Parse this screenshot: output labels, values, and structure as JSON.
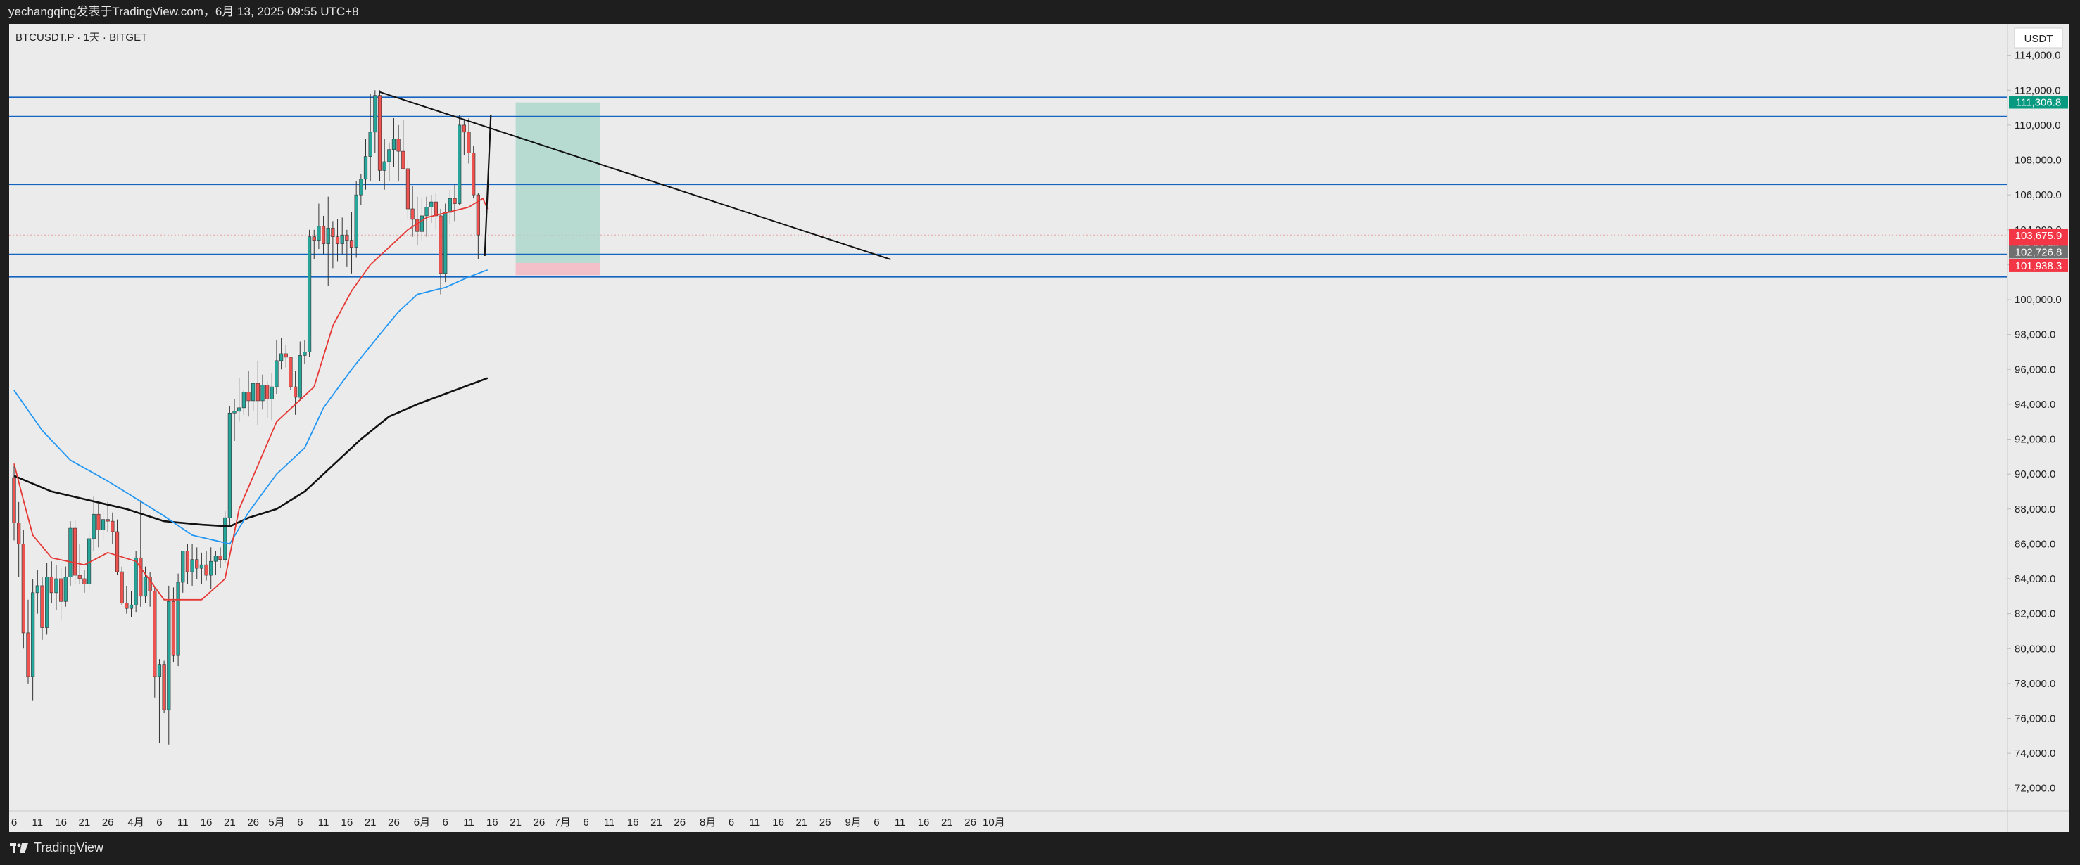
{
  "header": {
    "publisher": "yechangqing发表于TradingView.com，6月 13, 2025 09:55 UTC+8"
  },
  "footer": {
    "brand": "TradingView"
  },
  "colors": {
    "up": "#26a69a",
    "down": "#ef5350",
    "ema_red": "#e53935",
    "ema_blue": "#2196f3",
    "ema_black": "#111111",
    "hline": "#1565c0"
  },
  "chart_data": {
    "type": "candlestick",
    "symbol_label": "BTCUSDT.P · 1天 · BITGET",
    "currency": "USDT",
    "ylim": [
      70700,
      115800
    ],
    "y_ticks": [
      72000,
      74000,
      76000,
      78000,
      80000,
      82000,
      84000,
      86000,
      88000,
      90000,
      92000,
      94000,
      96000,
      98000,
      100000,
      102000,
      104000,
      106000,
      108000,
      110000,
      112000,
      114000
    ],
    "y_tick_labels": [
      "72,000.0",
      "74,000.0",
      "76,000.0",
      "78,000.0",
      "80,000.0",
      "82,000.0",
      "84,000.0",
      "86,000.0",
      "88,000.0",
      "90,000.0",
      "92,000.0",
      "94,000.0",
      "96,000.0",
      "98,000.0",
      "100,000.0",
      "102,000.0",
      "104,000.0",
      "106,000.0",
      "108,000.0",
      "110,000.0",
      "112,000.0",
      "114,000.0"
    ],
    "x_start_date": "2025-03-06",
    "x_ticks": [
      {
        "day": 0,
        "label": "6"
      },
      {
        "day": 5,
        "label": "11"
      },
      {
        "day": 10,
        "label": "16"
      },
      {
        "day": 15,
        "label": "21"
      },
      {
        "day": 20,
        "label": "26"
      },
      {
        "day": 26,
        "label": "4月"
      },
      {
        "day": 31,
        "label": "6"
      },
      {
        "day": 36,
        "label": "11"
      },
      {
        "day": 41,
        "label": "16"
      },
      {
        "day": 46,
        "label": "21"
      },
      {
        "day": 51,
        "label": "26"
      },
      {
        "day": 56,
        "label": "5月"
      },
      {
        "day": 61,
        "label": "6"
      },
      {
        "day": 66,
        "label": "11"
      },
      {
        "day": 71,
        "label": "16"
      },
      {
        "day": 76,
        "label": "21"
      },
      {
        "day": 81,
        "label": "26"
      },
      {
        "day": 87,
        "label": "6月"
      },
      {
        "day": 92,
        "label": "6"
      },
      {
        "day": 97,
        "label": "11"
      },
      {
        "day": 102,
        "label": "16"
      },
      {
        "day": 107,
        "label": "21"
      },
      {
        "day": 112,
        "label": "26"
      },
      {
        "day": 117,
        "label": "7月"
      },
      {
        "day": 122,
        "label": "6"
      },
      {
        "day": 127,
        "label": "11"
      },
      {
        "day": 132,
        "label": "16"
      },
      {
        "day": 137,
        "label": "21"
      },
      {
        "day": 142,
        "label": "26"
      },
      {
        "day": 148,
        "label": "8月"
      },
      {
        "day": 153,
        "label": "6"
      },
      {
        "day": 158,
        "label": "11"
      },
      {
        "day": 163,
        "label": "16"
      },
      {
        "day": 168,
        "label": "21"
      },
      {
        "day": 173,
        "label": "26"
      },
      {
        "day": 179,
        "label": "9月"
      },
      {
        "day": 184,
        "label": "6"
      },
      {
        "day": 189,
        "label": "11"
      },
      {
        "day": 194,
        "label": "16"
      },
      {
        "day": 199,
        "label": "21"
      },
      {
        "day": 204,
        "label": "26"
      },
      {
        "day": 209,
        "label": "10月"
      }
    ],
    "candles": [
      [
        89800,
        90500,
        86200,
        87200
      ],
      [
        87200,
        88400,
        84100,
        86000
      ],
      [
        86000,
        86800,
        80000,
        80900
      ],
      [
        80900,
        82800,
        78000,
        78400
      ],
      [
        78400,
        84000,
        77000,
        83200
      ],
      [
        83200,
        84500,
        82000,
        83600
      ],
      [
        83600,
        84100,
        80500,
        81200
      ],
      [
        81200,
        84900,
        80800,
        84100
      ],
      [
        84100,
        85000,
        82600,
        83200
      ],
      [
        83200,
        84800,
        82200,
        84000
      ],
      [
        84000,
        84600,
        81600,
        82700
      ],
      [
        82700,
        84700,
        82400,
        84100
      ],
      [
        84100,
        87300,
        83600,
        86900
      ],
      [
        86900,
        87400,
        83700,
        84200
      ],
      [
        84200,
        86000,
        83700,
        84000
      ],
      [
        84000,
        84500,
        83200,
        83700
      ],
      [
        83700,
        86700,
        83400,
        86300
      ],
      [
        86300,
        88700,
        85600,
        87700
      ],
      [
        87700,
        88300,
        85800,
        86800
      ],
      [
        86800,
        87900,
        86200,
        87400
      ],
      [
        87400,
        88400,
        86700,
        87300
      ],
      [
        87300,
        87800,
        86000,
        86700
      ],
      [
        86700,
        87400,
        84200,
        84400
      ],
      [
        84400,
        84700,
        82500,
        82600
      ],
      [
        82600,
        83600,
        82000,
        82300
      ],
      [
        82300,
        83300,
        81800,
        82500
      ],
      [
        82500,
        85600,
        82100,
        85200
      ],
      [
        85200,
        88500,
        82400,
        83000
      ],
      [
        83000,
        84700,
        82600,
        84100
      ],
      [
        84100,
        84400,
        82400,
        83300
      ],
      [
        83300,
        83500,
        77200,
        78400
      ],
      [
        78400,
        79400,
        74600,
        79100
      ],
      [
        79100,
        79300,
        76300,
        76500
      ],
      [
        76500,
        83600,
        74500,
        82700
      ],
      [
        82700,
        83500,
        79200,
        79600
      ],
      [
        79600,
        84300,
        79000,
        83800
      ],
      [
        83800,
        85600,
        83200,
        85600
      ],
      [
        85600,
        86000,
        83700,
        84400
      ],
      [
        84400,
        86000,
        83600,
        85100
      ],
      [
        85100,
        85800,
        84000,
        84600
      ],
      [
        84600,
        85500,
        83700,
        84800
      ],
      [
        84800,
        85600,
        83900,
        84200
      ],
      [
        84200,
        85800,
        83400,
        85000
      ],
      [
        85000,
        85600,
        84200,
        85300
      ],
      [
        85300,
        85800,
        84600,
        85100
      ],
      [
        85100,
        87900,
        84900,
        87500
      ],
      [
        87500,
        93900,
        87100,
        93500
      ],
      [
        93500,
        94300,
        91900,
        93600
      ],
      [
        93600,
        95500,
        93000,
        93800
      ],
      [
        93800,
        94800,
        93400,
        94700
      ],
      [
        94700,
        95900,
        93300,
        94200
      ],
      [
        94200,
        95000,
        93600,
        95200
      ],
      [
        95200,
        96500,
        92800,
        94200
      ],
      [
        94200,
        95700,
        93700,
        95100
      ],
      [
        95100,
        95300,
        93200,
        94300
      ],
      [
        94300,
        95800,
        93100,
        95000
      ],
      [
        95000,
        97700,
        94600,
        96500
      ],
      [
        96500,
        97800,
        96000,
        96900
      ],
      [
        96900,
        97400,
        96100,
        96700
      ],
      [
        96700,
        96700,
        94800,
        95000
      ],
      [
        95000,
        95900,
        93400,
        94400
      ],
      [
        94400,
        97600,
        94200,
        96800
      ],
      [
        96800,
        97700,
        96300,
        97000
      ],
      [
        97000,
        104000,
        96700,
        103600
      ],
      [
        103600,
        104000,
        102300,
        103400
      ],
      [
        103400,
        105500,
        102900,
        104200
      ],
      [
        104200,
        104800,
        102600,
        103200
      ],
      [
        103200,
        105900,
        100800,
        104100
      ],
      [
        104100,
        104500,
        101800,
        103600
      ],
      [
        103600,
        104600,
        102200,
        103200
      ],
      [
        103200,
        104700,
        102600,
        103700
      ],
      [
        103700,
        104000,
        101900,
        103400
      ],
      [
        103400,
        105000,
        101500,
        103000
      ],
      [
        103000,
        106800,
        102400,
        106000
      ],
      [
        106000,
        107200,
        105400,
        106900
      ],
      [
        106900,
        109200,
        106300,
        108200
      ],
      [
        108200,
        111800,
        106800,
        109600
      ],
      [
        109600,
        112000,
        108400,
        111700
      ],
      [
        111700,
        112000,
        106800,
        107400
      ],
      [
        107400,
        109200,
        106300,
        107900
      ],
      [
        107900,
        109000,
        106800,
        108600
      ],
      [
        108600,
        110400,
        107600,
        109200
      ],
      [
        109200,
        110000,
        106800,
        108500
      ],
      [
        108500,
        110300,
        107800,
        107500
      ],
      [
        107500,
        108000,
        104600,
        105200
      ],
      [
        105200,
        106500,
        103600,
        104600
      ],
      [
        104600,
        105900,
        103100,
        103900
      ],
      [
        103900,
        105800,
        103400,
        104800
      ],
      [
        104800,
        105900,
        103600,
        105300
      ],
      [
        105300,
        106000,
        104400,
        105600
      ],
      [
        105600,
        106100,
        104000,
        104800
      ],
      [
        104800,
        105200,
        100300,
        101500
      ],
      [
        101500,
        105500,
        101000,
        105000
      ],
      [
        105000,
        106300,
        104300,
        105800
      ],
      [
        105800,
        106600,
        104500,
        105500
      ],
      [
        105500,
        110600,
        105400,
        110000
      ],
      [
        110000,
        110300,
        108300,
        109600
      ],
      [
        109600,
        110400,
        107800,
        108400
      ],
      [
        108400,
        108800,
        105800,
        106000
      ],
      [
        106000,
        106100,
        102300,
        103700
      ]
    ],
    "ema_red": [
      [
        0,
        90600
      ],
      [
        2,
        88500
      ],
      [
        4,
        86500
      ],
      [
        8,
        85200
      ],
      [
        15,
        84800
      ],
      [
        20,
        85500
      ],
      [
        26,
        85000
      ],
      [
        32,
        82800
      ],
      [
        40,
        82800
      ],
      [
        45,
        84000
      ],
      [
        48,
        88000
      ],
      [
        56,
        93000
      ],
      [
        64,
        95000
      ],
      [
        68,
        98500
      ],
      [
        72,
        100500
      ],
      [
        76,
        102000
      ],
      [
        80,
        103000
      ],
      [
        84,
        104000
      ],
      [
        88,
        104700
      ],
      [
        94,
        105100
      ],
      [
        97,
        105300
      ],
      [
        100,
        105800
      ],
      [
        101,
        105200
      ]
    ],
    "ema_blue": [
      [
        0,
        94800
      ],
      [
        6,
        92500
      ],
      [
        12,
        90800
      ],
      [
        20,
        89600
      ],
      [
        26,
        88600
      ],
      [
        32,
        87600
      ],
      [
        38,
        86500
      ],
      [
        46,
        86000
      ],
      [
        50,
        87800
      ],
      [
        56,
        90000
      ],
      [
        62,
        91500
      ],
      [
        66,
        93800
      ],
      [
        72,
        96000
      ],
      [
        78,
        98000
      ],
      [
        82,
        99300
      ],
      [
        86,
        100300
      ],
      [
        92,
        100700
      ],
      [
        97,
        101300
      ],
      [
        101,
        101700
      ]
    ],
    "ema_black": [
      [
        0,
        89900
      ],
      [
        8,
        89000
      ],
      [
        16,
        88500
      ],
      [
        24,
        88000
      ],
      [
        32,
        87300
      ],
      [
        40,
        87100
      ],
      [
        46,
        87000
      ],
      [
        50,
        87500
      ],
      [
        56,
        88000
      ],
      [
        62,
        89000
      ],
      [
        68,
        90500
      ],
      [
        74,
        92000
      ],
      [
        80,
        93300
      ],
      [
        86,
        94000
      ],
      [
        92,
        94600
      ],
      [
        97,
        95100
      ],
      [
        101,
        95500
      ]
    ],
    "horizontal_levels": [
      111600,
      110500,
      106600,
      102600,
      101300
    ],
    "trendline": [
      [
        78,
        111900
      ],
      [
        187,
        102300
      ]
    ],
    "stroke_segment": [
      [
        100.4,
        102500
      ],
      [
        101.7,
        110600
      ]
    ],
    "position": {
      "day_start": 107,
      "day_end": 125,
      "top": 111300,
      "entry": 102100,
      "bottom": 101400
    },
    "price_tags": [
      {
        "value": 111306.8,
        "text": [
          "111,306.8"
        ],
        "bg": "#089981",
        "fg": "#ffffff"
      },
      {
        "value": 103675.9,
        "text": [
          "103,675.9",
          "22:04:38"
        ],
        "bg": "#f23645",
        "fg": "#ffffff"
      },
      {
        "value": 102726.8,
        "text": [
          "102,726.8"
        ],
        "bg": "#707070",
        "fg": "#ffffff"
      },
      {
        "value": 101938.3,
        "text": [
          "101,938.3"
        ],
        "bg": "#f23645",
        "fg": "#ffffff"
      }
    ]
  }
}
